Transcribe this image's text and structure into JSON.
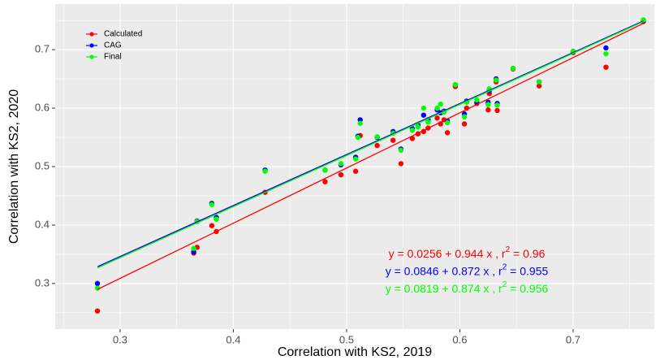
{
  "chart_data": {
    "type": "scatter",
    "x_label": "Correlation with KS2, 2019",
    "y_label": "Correlation with KS2, 2020",
    "xlim": [
      0.2427,
      0.7717
    ],
    "ylim": [
      0.222,
      0.778
    ],
    "xticks": [
      0.3,
      0.4,
      0.5,
      0.6,
      0.7
    ],
    "yticks": [
      0.3,
      0.4,
      0.5,
      0.6,
      0.7
    ],
    "grid": true,
    "legend": "top-left",
    "x": [
      0.28,
      0.365,
      0.368,
      0.381,
      0.385,
      0.428,
      0.481,
      0.495,
      0.508,
      0.51,
      0.512,
      0.527,
      0.541,
      0.548,
      0.558,
      0.563,
      0.568,
      0.572,
      0.58,
      0.583,
      0.586,
      0.589,
      0.596,
      0.604,
      0.606,
      0.615,
      0.625,
      0.626,
      0.633,
      0.632,
      0.647,
      0.67,
      0.7,
      0.729,
      0.762
    ],
    "series": [
      {
        "name": "Calculated",
        "color": "#ff0000",
        "values": [
          0.253,
          0.352,
          0.362,
          0.399,
          0.389,
          0.456,
          0.474,
          0.486,
          0.492,
          0.551,
          0.553,
          0.536,
          0.545,
          0.505,
          0.548,
          0.556,
          0.56,
          0.566,
          0.583,
          0.573,
          0.58,
          0.558,
          0.637,
          0.573,
          0.6,
          0.608,
          0.597,
          0.625,
          0.596,
          0.645,
          0.667,
          0.638,
          0.695,
          0.67,
          0.748
        ],
        "fit": {
          "intercept": 0.0256,
          "slope": 0.944
        },
        "equation": {
          "text": "y = 0.0256 + 0.944 x , r",
          "sup": "2",
          "tail": " = 0.96"
        }
      },
      {
        "name": "CAG",
        "color": "#0000ff",
        "values": [
          0.3,
          0.354,
          0.407,
          0.437,
          0.413,
          0.494,
          0.494,
          0.503,
          0.516,
          0.552,
          0.58,
          0.55,
          0.56,
          0.53,
          0.565,
          0.571,
          0.588,
          0.58,
          0.597,
          0.592,
          0.595,
          0.578,
          0.64,
          0.59,
          0.612,
          0.61,
          0.61,
          0.63,
          0.608,
          0.65,
          0.668,
          0.645,
          0.697,
          0.703,
          0.75
        ],
        "fit": {
          "intercept": 0.0846,
          "slope": 0.872
        },
        "equation": {
          "text": "y = 0.0846 + 0.872 x , r",
          "sup": "2",
          "tail": " = 0.955"
        }
      },
      {
        "name": "Final",
        "color": "#00ff00",
        "values": [
          0.292,
          0.36,
          0.406,
          0.435,
          0.41,
          0.492,
          0.494,
          0.505,
          0.513,
          0.55,
          0.574,
          0.551,
          0.557,
          0.528,
          0.562,
          0.568,
          0.6,
          0.576,
          0.6,
          0.607,
          0.593,
          0.575,
          0.64,
          0.585,
          0.61,
          0.614,
          0.606,
          0.633,
          0.605,
          0.648,
          0.668,
          0.645,
          0.697,
          0.693,
          0.751
        ],
        "fit": {
          "intercept": 0.0819,
          "slope": 0.874
        },
        "equation": {
          "text": "y = 0.0819 + 0.874 x , r",
          "sup": "2",
          "tail": " = 0.956"
        }
      }
    ]
  }
}
